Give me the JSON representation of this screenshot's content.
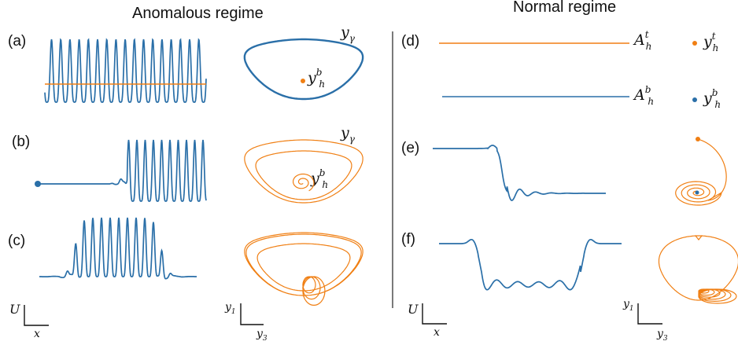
{
  "headings": {
    "left": "Anomalous regime",
    "right": "Normal regime"
  },
  "panels": [
    {
      "label": "(a)",
      "profile": "wavetrain",
      "phase_label": "y",
      "phase_label_sub": "γ",
      "point_label": "y",
      "point_label_sup": "b",
      "point_label_sub": "h"
    },
    {
      "label": "(b)",
      "profile": "front",
      "phase_label": "y",
      "phase_label_sub": "γ",
      "point_label": "y",
      "point_label_sup": "b",
      "point_label_sub": "h"
    },
    {
      "label": "(c)",
      "profile": "localized-pulse-train"
    },
    {
      "label": "(d)",
      "line_labels": [
        {
          "base": "A",
          "sup": "t",
          "sub": "h"
        },
        {
          "base": "A",
          "sup": "b",
          "sub": "h"
        }
      ],
      "point_labels": [
        {
          "base": "y",
          "sup": "t",
          "sub": "h"
        },
        {
          "base": "y",
          "sup": "b",
          "sub": "h"
        }
      ]
    },
    {
      "label": "(e)",
      "profile": "switching-front"
    },
    {
      "label": "(f)",
      "profile": "dark-soliton"
    }
  ],
  "axes_left": {
    "profile_y": "U",
    "profile_x": "x",
    "phase_y": "y",
    "phase_y_sub": "1",
    "phase_x": "y",
    "phase_x_sub": "3"
  },
  "axes_right": {
    "profile_y": "U",
    "profile_x": "x",
    "phase_y": "y",
    "phase_y_sub": "1",
    "phase_x": "y",
    "phase_x_sub": "3"
  },
  "colors": {
    "blue": "#2a6fa8",
    "orange": "#f07f13"
  }
}
